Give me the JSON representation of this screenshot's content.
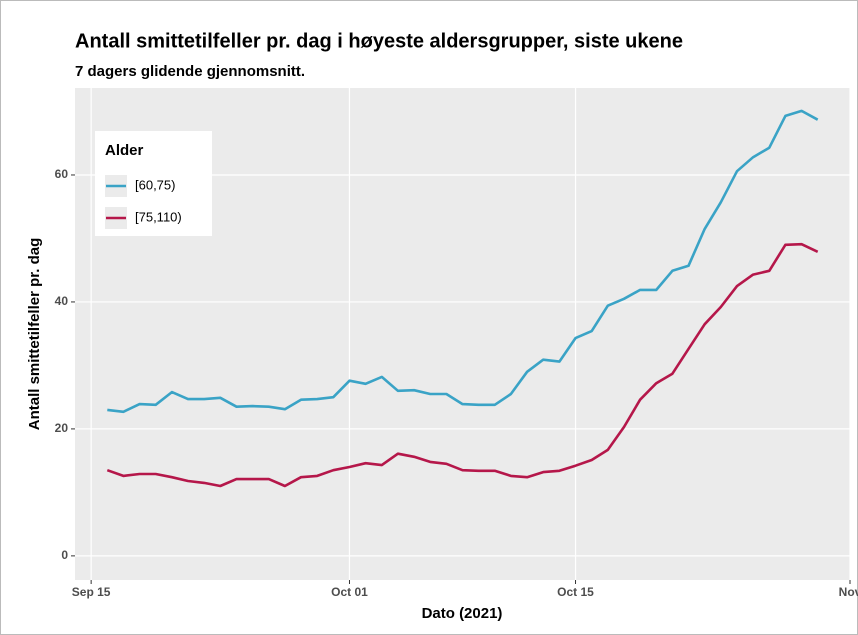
{
  "chart_data": {
    "type": "line",
    "title": "Antall smittetilfeller pr. dag i høyeste aldersgrupper, siste ukene",
    "subtitle": "7 dagers glidende gjennomsnitt.",
    "x_label": "Dato (2021)",
    "y_label": "Antall smittetilfeller pr. dag",
    "legend_title": "Alder",
    "legend_position": "top-left",
    "grid": true,
    "x": [
      "2021-09-16",
      "2021-09-17",
      "2021-09-18",
      "2021-09-19",
      "2021-09-20",
      "2021-09-21",
      "2021-09-22",
      "2021-09-23",
      "2021-09-24",
      "2021-09-25",
      "2021-09-26",
      "2021-09-27",
      "2021-09-28",
      "2021-09-29",
      "2021-09-30",
      "2021-10-01",
      "2021-10-02",
      "2021-10-03",
      "2021-10-04",
      "2021-10-05",
      "2021-10-06",
      "2021-10-07",
      "2021-10-08",
      "2021-10-09",
      "2021-10-10",
      "2021-10-11",
      "2021-10-12",
      "2021-10-13",
      "2021-10-14",
      "2021-10-15",
      "2021-10-16",
      "2021-10-17",
      "2021-10-18",
      "2021-10-19",
      "2021-10-20",
      "2021-10-21",
      "2021-10-22",
      "2021-10-23",
      "2021-10-24",
      "2021-10-25",
      "2021-10-26",
      "2021-10-27",
      "2021-10-28",
      "2021-10-29",
      "2021-10-30"
    ],
    "series": [
      {
        "name": "[60,75)",
        "color": "#3aa3c6",
        "values": [
          23.0,
          22.7,
          23.9,
          23.8,
          25.8,
          24.7,
          24.7,
          24.9,
          23.5,
          23.6,
          23.5,
          23.1,
          24.6,
          24.7,
          25.0,
          27.6,
          27.1,
          28.2,
          26.0,
          26.1,
          25.5,
          25.5,
          23.9,
          23.8,
          23.8,
          25.5,
          29.0,
          30.9,
          30.6,
          34.3,
          35.4,
          39.4,
          40.5,
          41.9,
          41.9,
          44.9,
          45.7,
          51.5,
          55.7,
          60.6,
          62.8,
          64.3,
          69.3,
          70.1,
          68.7
        ]
      },
      {
        "name": "[75,110)",
        "color": "#b5174a",
        "values": [
          13.5,
          12.6,
          12.9,
          12.9,
          12.4,
          11.8,
          11.5,
          11.0,
          12.1,
          12.1,
          12.1,
          11.0,
          12.4,
          12.6,
          13.5,
          14.0,
          14.6,
          14.3,
          16.1,
          15.6,
          14.8,
          14.5,
          13.5,
          13.4,
          13.4,
          12.6,
          12.4,
          13.2,
          13.4,
          14.2,
          15.1,
          16.7,
          20.3,
          24.6,
          27.2,
          28.7,
          32.6,
          36.5,
          39.2,
          42.5,
          44.3,
          44.9,
          49.0,
          49.1,
          47.9
        ]
      }
    ],
    "xlim": [
      "2021-09-14",
      "2021-11-01"
    ],
    "xticks": [
      {
        "value": "2021-09-15",
        "label": "Sep 15"
      },
      {
        "value": "2021-10-01",
        "label": "Oct 01"
      },
      {
        "value": "2021-10-15",
        "label": "Oct 15"
      },
      {
        "value": "2021-11-01",
        "label": "Nov"
      }
    ],
    "ylim": [
      -3.8,
      73.7
    ],
    "yticks": [
      0,
      20,
      40,
      60
    ]
  }
}
